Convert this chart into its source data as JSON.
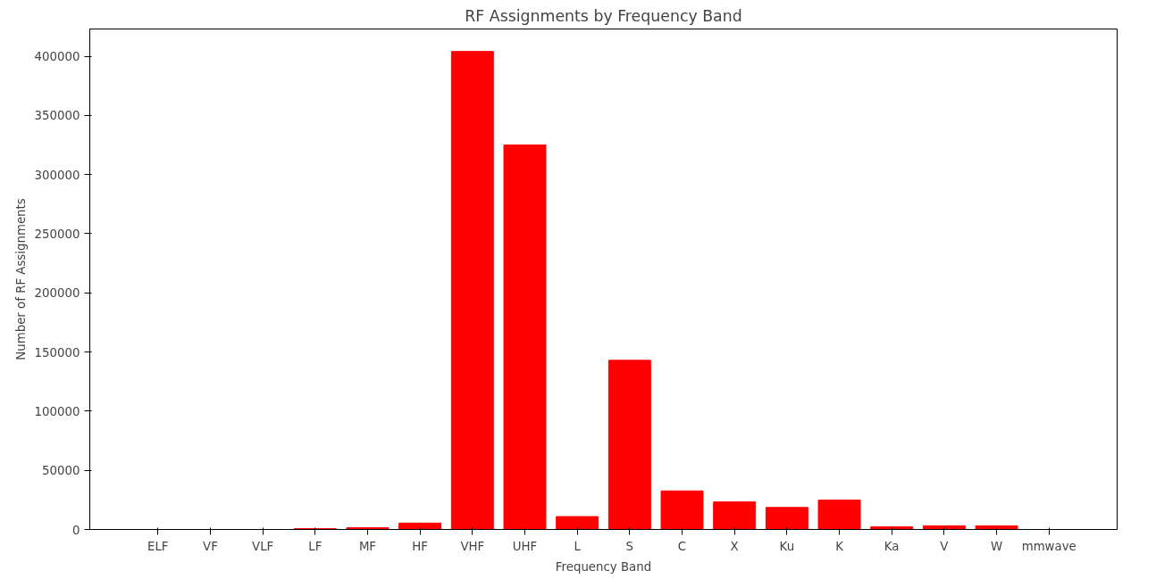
{
  "chart_data": {
    "type": "bar",
    "title": "RF Assignments by Frequency Band",
    "xlabel": "Frequency Band",
    "ylabel": "Number of RF Assignments",
    "categories": [
      "ELF",
      "VF",
      "VLF",
      "LF",
      "MF",
      "HF",
      "VHF",
      "UHF",
      "L",
      "S",
      "C",
      "X",
      "Ku",
      "K",
      "Ka",
      "V",
      "W",
      "mmwave"
    ],
    "values": [
      0,
      0,
      0,
      800,
      1500,
      5400,
      404000,
      325000,
      10900,
      143000,
      32600,
      23300,
      18600,
      24900,
      2300,
      3100,
      3100,
      0
    ],
    "color": "#ff0000",
    "ylim": [
      0,
      423000
    ],
    "yticks": [
      0,
      50000,
      100000,
      150000,
      200000,
      250000,
      300000,
      350000,
      400000
    ],
    "grid": false
  }
}
